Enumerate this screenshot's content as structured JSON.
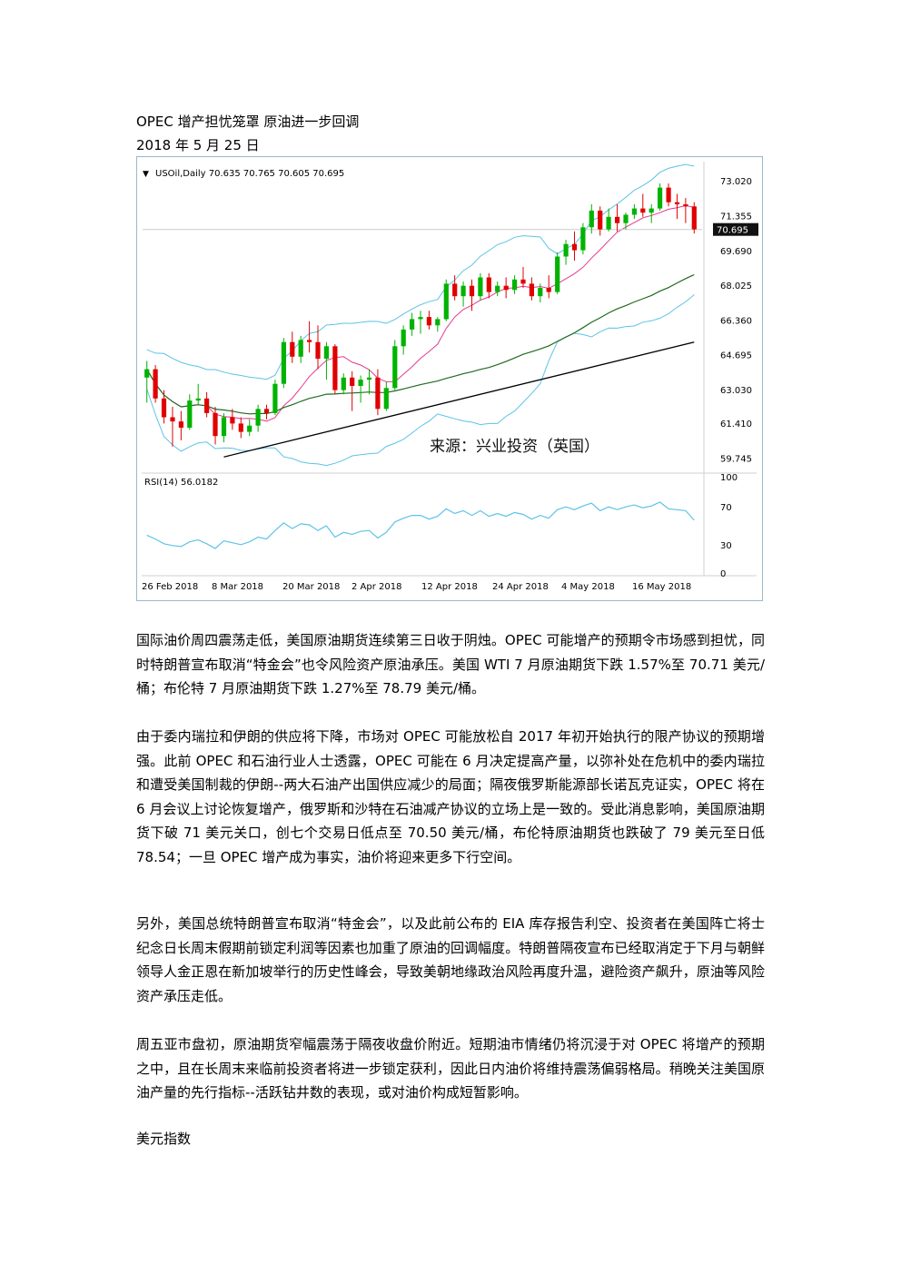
{
  "document": {
    "title": "OPEC 增产担忧笼罩  原油进一步回调",
    "date": "2018 年 5 月 25 日",
    "paragraphs": [
      "国际油价周四震荡走低，美国原油期货连续第三日收于阴烛。OPEC 可能增产的预期令市场感到担忧，同时特朗普宣布取消“特金会”也令风险资产原油承压。美国 WTI 7 月原油期货下跌 1.57%至 70.71 美元/桶；布伦特 7 月原油期货下跌 1.27%至 78.79 美元/桶。",
      "由于委内瑞拉和伊朗的供应将下降，市场对 OPEC 可能放松自 2017 年初开始执行的限产协议的预期增强。此前 OPEC 和石油行业人士透露，OPEC 可能在 6 月决定提高产量，以弥补处在危机中的委内瑞拉和遭受美国制裁的伊朗--两大石油产出国供应减少的局面；隔夜俄罗斯能源部长诺瓦克证实，OPEC 将在 6 月会议上讨论恢复增产，俄罗斯和沙特在石油减产协议的立场上是一致的。受此消息影响，美国原油期货下破 71 美元关口，创七个交易日低点至 70.50 美元/桶，布伦特原油期货也跌破了 79 美元至日低 78.54；一旦 OPEC 增产成为事实，油价将迎来更多下行空间。",
      "另外，美国总统特朗普宣布取消“特金会”，以及此前公布的 EIA 库存报告利空、投资者在美国阵亡将士纪念日长周末假期前锁定利润等因素也加重了原油的回调幅度。特朗普隔夜宣布已经取消定于下月与朝鲜领导人金正恩在新加坡举行的历史性峰会，导致美朝地缘政治风险再度升温，避险资产飙升，原油等风险资产承压走低。",
      "周五亚市盘初，原油期货窄幅震荡于隔夜收盘价附近。短期油市情绪仍将沉浸于对 OPEC 将增产的预期之中，且在长周末来临前投资者将进一步锁定获利，因此日内油价将维持震荡偏弱格局。稍晚关注美国原油产量的先行指标--活跃钻井数的表现，或对油价构成短暂影响。"
    ],
    "next_heading": "美元指数"
  },
  "chart_data": {
    "type": "candlestick",
    "header": "USOil,Daily  70.635 70.765 70.605 70.695",
    "source_note": "来源：兴业投资（英国）",
    "price_ticks": [
      "73.020",
      "71.355",
      "69.690",
      "68.025",
      "66.360",
      "64.695",
      "63.030",
      "61.410",
      "59.745"
    ],
    "current_price": "70.695",
    "rsi_label": "RSI(14) 56.0182",
    "rsi_ticks": [
      "100",
      "70",
      "30",
      "0"
    ],
    "date_ticks": [
      "26 Feb 2018",
      "8 Mar 2018",
      "20 Mar 2018",
      "2 Apr 2018",
      "12 Apr 2018",
      "24 Apr 2018",
      "4 May 2018",
      "16 May 2018"
    ],
    "ylim": [
      59.2,
      73.9
    ],
    "candles": [
      {
        "o": 63.6,
        "h": 64.4,
        "l": 62.4,
        "c": 64.0
      },
      {
        "o": 64.0,
        "h": 64.2,
        "l": 62.4,
        "c": 62.6
      },
      {
        "o": 62.6,
        "h": 63.0,
        "l": 61.4,
        "c": 61.7
      },
      {
        "o": 61.7,
        "h": 62.2,
        "l": 60.3,
        "c": 61.5
      },
      {
        "o": 61.5,
        "h": 62.0,
        "l": 60.6,
        "c": 61.2
      },
      {
        "o": 61.2,
        "h": 62.8,
        "l": 61.1,
        "c": 62.5
      },
      {
        "o": 62.5,
        "h": 63.3,
        "l": 62.3,
        "c": 62.6
      },
      {
        "o": 62.6,
        "h": 62.9,
        "l": 61.7,
        "c": 61.9
      },
      {
        "o": 61.9,
        "h": 62.2,
        "l": 60.4,
        "c": 60.8
      },
      {
        "o": 60.8,
        "h": 61.9,
        "l": 60.5,
        "c": 61.7
      },
      {
        "o": 61.7,
        "h": 62.1,
        "l": 61.1,
        "c": 61.4
      },
      {
        "o": 61.4,
        "h": 61.7,
        "l": 60.7,
        "c": 61.0
      },
      {
        "o": 61.0,
        "h": 61.6,
        "l": 60.8,
        "c": 61.3
      },
      {
        "o": 61.3,
        "h": 62.3,
        "l": 61.0,
        "c": 62.1
      },
      {
        "o": 62.1,
        "h": 62.3,
        "l": 61.6,
        "c": 61.9
      },
      {
        "o": 61.9,
        "h": 63.5,
        "l": 61.8,
        "c": 63.3
      },
      {
        "o": 63.3,
        "h": 65.5,
        "l": 63.1,
        "c": 65.3
      },
      {
        "o": 65.3,
        "h": 65.8,
        "l": 64.3,
        "c": 64.6
      },
      {
        "o": 64.6,
        "h": 65.6,
        "l": 64.3,
        "c": 65.4
      },
      {
        "o": 65.4,
        "h": 66.3,
        "l": 64.8,
        "c": 65.3
      },
      {
        "o": 65.3,
        "h": 66.1,
        "l": 64.0,
        "c": 64.5
      },
      {
        "o": 64.5,
        "h": 65.3,
        "l": 63.5,
        "c": 65.1
      },
      {
        "o": 65.1,
        "h": 65.2,
        "l": 62.8,
        "c": 63.0
      },
      {
        "o": 63.0,
        "h": 63.8,
        "l": 62.8,
        "c": 63.6
      },
      {
        "o": 63.6,
        "h": 63.9,
        "l": 62.0,
        "c": 63.2
      },
      {
        "o": 63.2,
        "h": 63.7,
        "l": 62.4,
        "c": 63.5
      },
      {
        "o": 63.5,
        "h": 64.0,
        "l": 62.8,
        "c": 63.6
      },
      {
        "o": 63.6,
        "h": 64.0,
        "l": 61.8,
        "c": 62.1
      },
      {
        "o": 62.1,
        "h": 63.4,
        "l": 62.0,
        "c": 63.1
      },
      {
        "o": 63.1,
        "h": 65.4,
        "l": 63.0,
        "c": 65.1
      },
      {
        "o": 65.1,
        "h": 66.1,
        "l": 64.7,
        "c": 65.9
      },
      {
        "o": 65.9,
        "h": 66.7,
        "l": 65.6,
        "c": 66.4
      },
      {
        "o": 66.4,
        "h": 66.8,
        "l": 65.7,
        "c": 66.5
      },
      {
        "o": 66.5,
        "h": 66.8,
        "l": 65.9,
        "c": 66.1
      },
      {
        "o": 66.1,
        "h": 66.5,
        "l": 65.8,
        "c": 66.4
      },
      {
        "o": 66.4,
        "h": 68.3,
        "l": 66.3,
        "c": 68.1
      },
      {
        "o": 68.1,
        "h": 68.5,
        "l": 67.3,
        "c": 67.5
      },
      {
        "o": 67.5,
        "h": 68.2,
        "l": 67.0,
        "c": 68.0
      },
      {
        "o": 68.0,
        "h": 68.3,
        "l": 66.8,
        "c": 67.5
      },
      {
        "o": 67.5,
        "h": 68.6,
        "l": 67.3,
        "c": 68.4
      },
      {
        "o": 68.4,
        "h": 68.6,
        "l": 67.4,
        "c": 67.7
      },
      {
        "o": 67.7,
        "h": 68.2,
        "l": 67.5,
        "c": 68.0
      },
      {
        "o": 68.0,
        "h": 68.4,
        "l": 67.4,
        "c": 67.8
      },
      {
        "o": 67.8,
        "h": 68.5,
        "l": 67.6,
        "c": 68.3
      },
      {
        "o": 68.3,
        "h": 68.9,
        "l": 67.9,
        "c": 68.1
      },
      {
        "o": 68.1,
        "h": 68.4,
        "l": 67.3,
        "c": 67.5
      },
      {
        "o": 67.5,
        "h": 68.1,
        "l": 67.2,
        "c": 67.9
      },
      {
        "o": 67.9,
        "h": 68.5,
        "l": 67.4,
        "c": 67.7
      },
      {
        "o": 67.7,
        "h": 69.6,
        "l": 67.6,
        "c": 69.4
      },
      {
        "o": 69.4,
        "h": 70.2,
        "l": 69.0,
        "c": 70.0
      },
      {
        "o": 70.0,
        "h": 70.6,
        "l": 69.2,
        "c": 69.7
      },
      {
        "o": 69.7,
        "h": 71.0,
        "l": 69.5,
        "c": 70.8
      },
      {
        "o": 70.8,
        "h": 71.9,
        "l": 70.5,
        "c": 71.6
      },
      {
        "o": 71.6,
        "h": 71.8,
        "l": 70.4,
        "c": 70.7
      },
      {
        "o": 70.7,
        "h": 71.7,
        "l": 70.6,
        "c": 71.3
      },
      {
        "o": 71.3,
        "h": 71.9,
        "l": 70.6,
        "c": 71.0
      },
      {
        "o": 71.0,
        "h": 71.5,
        "l": 70.7,
        "c": 71.4
      },
      {
        "o": 71.4,
        "h": 71.9,
        "l": 71.2,
        "c": 71.7
      },
      {
        "o": 71.7,
        "h": 72.4,
        "l": 71.3,
        "c": 71.5
      },
      {
        "o": 71.5,
        "h": 71.9,
        "l": 71.0,
        "c": 71.7
      },
      {
        "o": 71.7,
        "h": 72.9,
        "l": 71.6,
        "c": 72.7
      },
      {
        "o": 72.7,
        "h": 72.9,
        "l": 71.8,
        "c": 72.0
      },
      {
        "o": 72.0,
        "h": 72.4,
        "l": 71.2,
        "c": 71.9
      },
      {
        "o": 71.9,
        "h": 72.2,
        "l": 71.0,
        "c": 71.8
      },
      {
        "o": 71.8,
        "h": 72.0,
        "l": 70.5,
        "c": 70.7
      }
    ],
    "rsi_values": [
      40,
      36,
      31,
      29,
      28,
      33,
      35,
      31,
      26,
      34,
      32,
      30,
      33,
      38,
      36,
      45,
      53,
      47,
      52,
      51,
      45,
      50,
      38,
      43,
      41,
      44,
      45,
      37,
      43,
      54,
      58,
      61,
      61,
      57,
      60,
      68,
      63,
      66,
      61,
      66,
      60,
      63,
      60,
      64,
      62,
      57,
      61,
      58,
      67,
      70,
      67,
      71,
      74,
      66,
      70,
      67,
      70,
      72,
      69,
      71,
      75,
      68,
      67,
      66,
      56
    ],
    "colors": {
      "bull": "#00b300",
      "bear": "#e00000",
      "bollinger": "#5cc3e6",
      "ma_short": "#e33b8f",
      "ma_mid": "#1f6b1f",
      "ma_long": "#000000",
      "rsi": "#5cc3e6",
      "frame": "#9ab8cc"
    }
  }
}
